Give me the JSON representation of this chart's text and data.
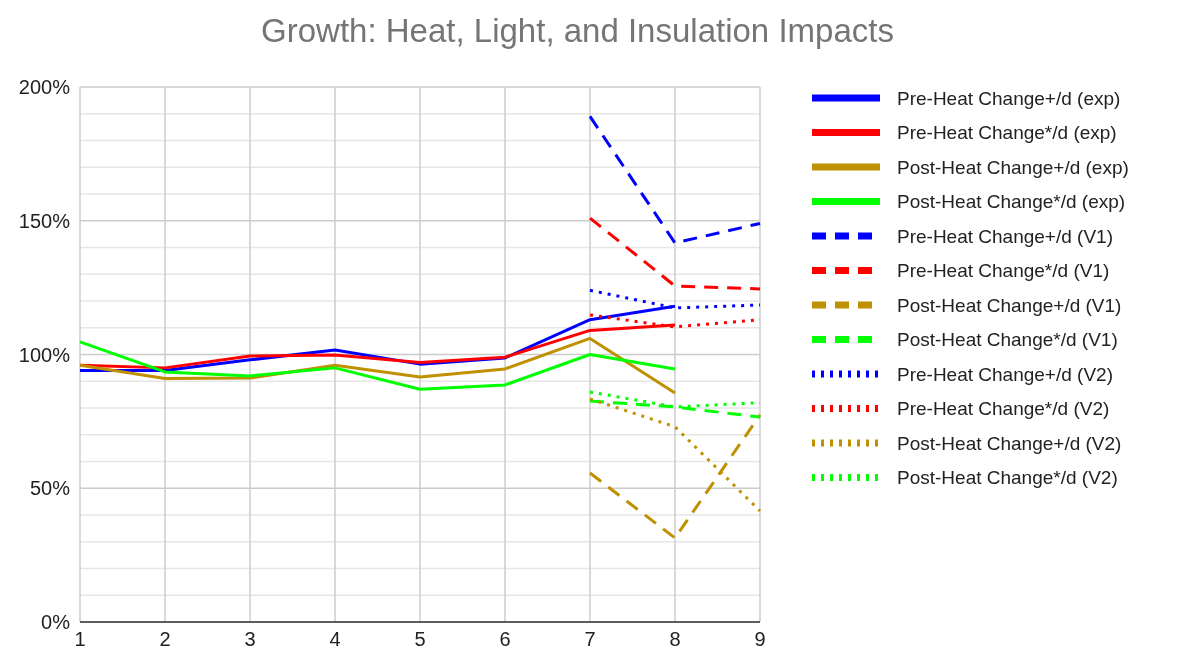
{
  "chart_data": {
    "type": "line",
    "title": "Growth: Heat, Light, and Insulation Impacts",
    "xlim": [
      1,
      9
    ],
    "xticks": [
      1,
      2,
      3,
      4,
      5,
      6,
      7,
      8,
      9
    ],
    "ylim": [
      0,
      200
    ],
    "yticks": [
      {
        "value": 0,
        "label": "0%"
      },
      {
        "value": 10,
        "label": null
      },
      {
        "value": 20,
        "label": null
      },
      {
        "value": 30,
        "label": null
      },
      {
        "value": 40,
        "label": null
      },
      {
        "value": 50,
        "label": "50%"
      },
      {
        "value": 60,
        "label": null
      },
      {
        "value": 70,
        "label": null
      },
      {
        "value": 80,
        "label": null
      },
      {
        "value": 90,
        "label": null
      },
      {
        "value": 100,
        "label": "100%"
      },
      {
        "value": 110,
        "label": null
      },
      {
        "value": 120,
        "label": null
      },
      {
        "value": 130,
        "label": null
      },
      {
        "value": 140,
        "label": null
      },
      {
        "value": 150,
        "label": "150%"
      },
      {
        "value": 160,
        "label": null
      },
      {
        "value": 170,
        "label": null
      },
      {
        "value": 180,
        "label": null
      },
      {
        "value": 190,
        "label": null
      },
      {
        "value": 200,
        "label": "200%"
      }
    ],
    "grid": true,
    "legend": "right",
    "marker": "none",
    "series": [
      {
        "name": "Pre-Heat Change+/d (exp)",
        "color": "#0000ff",
        "line_style": "solid",
        "x": [
          1,
          2,
          3,
          4,
          5,
          6,
          7,
          8
        ],
        "values": [
          94,
          94,
          98,
          101.7,
          96.4,
          98.7,
          113,
          118
        ]
      },
      {
        "name": "Pre-Heat Change*/d (exp)",
        "color": "#ff0000",
        "line_style": "solid",
        "x": [
          1,
          2,
          3,
          4,
          5,
          6,
          7,
          8
        ],
        "values": [
          96,
          95,
          99.4,
          99.8,
          97,
          99,
          109,
          111
        ]
      },
      {
        "name": "Post-Heat Change+/d (exp)",
        "color": "#bf9000",
        "line_style": "solid",
        "x": [
          1,
          2,
          3,
          4,
          5,
          6,
          7,
          8
        ],
        "values": [
          96,
          91,
          91.2,
          96,
          91.6,
          94.6,
          106,
          85.6
        ]
      },
      {
        "name": "Post-Heat Change*/d (exp)",
        "color": "#00ff00",
        "line_style": "solid",
        "x": [
          1,
          2,
          3,
          4,
          5,
          6,
          7,
          8
        ],
        "values": [
          104.7,
          93.5,
          92,
          95,
          87,
          88.6,
          100,
          94.6
        ]
      },
      {
        "name": "Pre-Heat Change+/d (V1)",
        "color": "#0000ff",
        "line_style": "dashed",
        "x": [
          7,
          8,
          9
        ],
        "values": [
          189,
          141.7,
          149
        ]
      },
      {
        "name": "Pre-Heat Change*/d (V1)",
        "color": "#ff0000",
        "line_style": "dashed",
        "x": [
          7,
          8,
          9
        ],
        "values": [
          151,
          125.6,
          124.5
        ]
      },
      {
        "name": "Post-Heat Change+/d (V1)",
        "color": "#bf9000",
        "line_style": "dashed",
        "x": [
          7,
          8,
          9
        ],
        "values": [
          55.7,
          31.4,
          77.4
        ]
      },
      {
        "name": "Post-Heat Change*/d (V1)",
        "color": "#00ff00",
        "line_style": "dashed",
        "x": [
          7,
          8,
          9
        ],
        "values": [
          82.6,
          80.4,
          76.6
        ]
      },
      {
        "name": "Pre-Heat Change+/d (V2)",
        "color": "#0000ff",
        "line_style": "dotted",
        "x": [
          7,
          8,
          9
        ],
        "values": [
          124,
          117.4,
          118.5
        ]
      },
      {
        "name": "Pre-Heat Change*/d (V2)",
        "color": "#ff0000",
        "line_style": "dotted",
        "x": [
          7,
          8,
          9
        ],
        "values": [
          114.8,
          110.3,
          113
        ]
      },
      {
        "name": "Post-Heat Change+/d (V2)",
        "color": "#bf9000",
        "line_style": "dotted",
        "x": [
          7,
          8,
          9
        ],
        "values": [
          83.4,
          73,
          41.5
        ]
      },
      {
        "name": "Post-Heat Change*/d (V2)",
        "color": "#00ff00",
        "line_style": "dotted",
        "x": [
          7,
          8,
          9
        ],
        "values": [
          86,
          80.4,
          82
        ]
      }
    ]
  }
}
